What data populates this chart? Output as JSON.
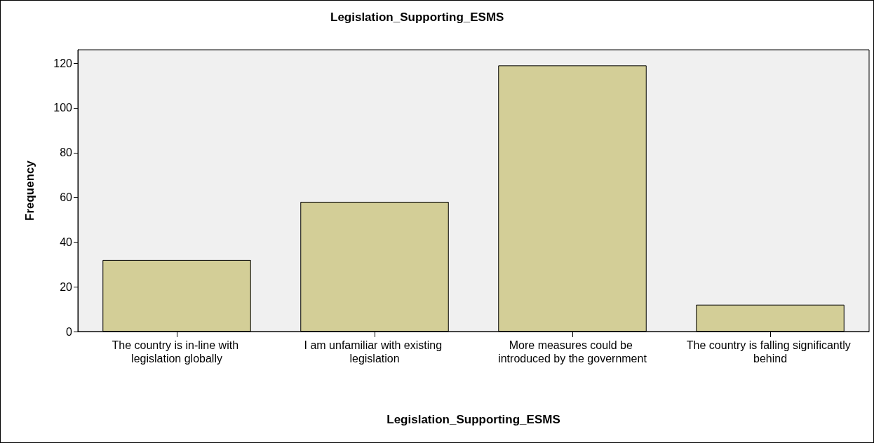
{
  "chart_data": {
    "type": "bar",
    "title": "Legislation_Supporting_ESMS",
    "xlabel": "Legislation_Supporting_ESMS",
    "ylabel": "Frequency",
    "categories": [
      "The country is in-line with legislation globally",
      "I am unfamiliar with existing legislation",
      "More measures could be introduced by the government",
      "The country is falling significantly behind"
    ],
    "values": [
      32,
      58,
      119,
      12
    ],
    "color": "#d3ce97",
    "ylim": [
      0,
      126
    ],
    "yticks": [
      0,
      20,
      40,
      60,
      80,
      100,
      120
    ],
    "grid": false
  }
}
